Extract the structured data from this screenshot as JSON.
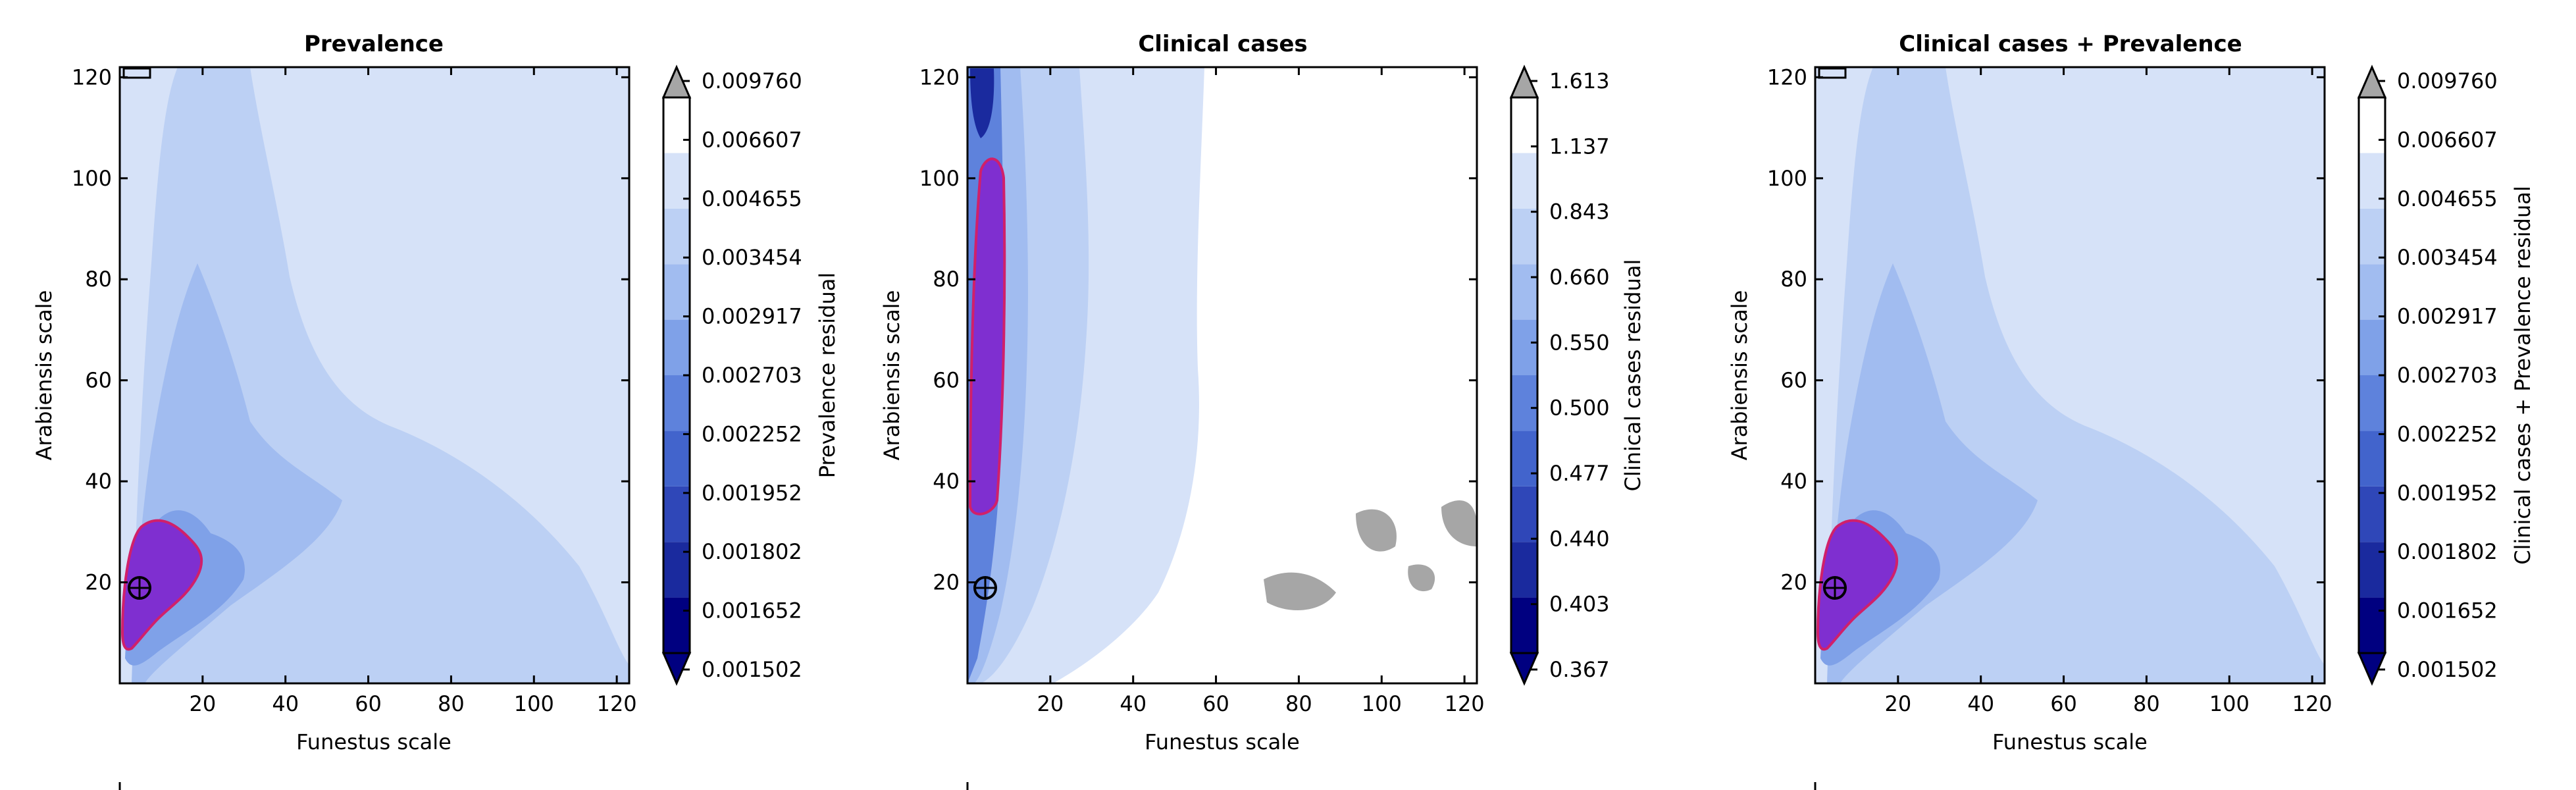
{
  "figure": {
    "background": "#ffffff"
  },
  "chart_data": [
    {
      "type": "heatmap",
      "subtype": "filled-contour",
      "title": "Prevalence",
      "xlabel": "Funestus scale",
      "ylabel": "Arabiensis scale",
      "xlim": [
        0,
        123
      ],
      "ylim": [
        0,
        122
      ],
      "xticks": [
        20,
        40,
        60,
        80,
        100,
        120
      ],
      "yticks": [
        20,
        40,
        60,
        80,
        100,
        120
      ],
      "colorbar": {
        "label": "Prevalence residual",
        "levels": [
          "0.001502",
          "0.001652",
          "0.001802",
          "0.001952",
          "0.002252",
          "0.002703",
          "0.002917",
          "0.003454",
          "0.004655",
          "0.006607",
          "0.009760"
        ],
        "extend": "both",
        "colors": [
          "#000080",
          "#1a2a9e",
          "#2f47b8",
          "#4264cc",
          "#5e82dc",
          "#7fa1e8",
          "#a1bcf0",
          "#bcd0f4",
          "#d6e2f8",
          "#ffffff"
        ],
        "over_color": "#a6a6a6",
        "under_color": "#000080"
      },
      "best_marker": {
        "x": 5,
        "y": 20
      },
      "highlight_color": "#7f2fd0",
      "outline_color": "#d0206a"
    },
    {
      "type": "heatmap",
      "subtype": "filled-contour",
      "title": "Clinical cases",
      "xlabel": "Funestus scale",
      "ylabel": "Arabiensis scale",
      "xlim": [
        0,
        123
      ],
      "ylim": [
        0,
        122
      ],
      "xticks": [
        20,
        40,
        60,
        80,
        100,
        120
      ],
      "yticks": [
        20,
        40,
        60,
        80,
        100,
        120
      ],
      "colorbar": {
        "label": "Clinical cases residual",
        "levels": [
          "0.367",
          "0.403",
          "0.440",
          "0.477",
          "0.500",
          "0.550",
          "0.660",
          "0.843",
          "1.137",
          "1.613"
        ],
        "extend": "both",
        "colors": [
          "#000080",
          "#1a2a9e",
          "#2f47b8",
          "#4264cc",
          "#5e82dc",
          "#7fa1e8",
          "#a1bcf0",
          "#bcd0f4",
          "#d6e2f8",
          "#ffffff"
        ],
        "over_color": "#a6a6a6",
        "under_color": "#000080"
      },
      "best_marker": {
        "x": 4,
        "y": 20
      },
      "highlight_color": "#7f2fd0",
      "outline_color": "#d0206a"
    },
    {
      "type": "heatmap",
      "subtype": "filled-contour",
      "title": "Clinical cases + Prevalence",
      "xlabel": "Funestus scale",
      "ylabel": "Arabiensis scale",
      "xlim": [
        0,
        123
      ],
      "ylim": [
        0,
        122
      ],
      "xticks": [
        20,
        40,
        60,
        80,
        100,
        120
      ],
      "yticks": [
        20,
        40,
        60,
        80,
        100,
        120
      ],
      "colorbar": {
        "label": "Clinical cases + Prevalence residual",
        "levels": [
          "0.001502",
          "0.001652",
          "0.001802",
          "0.001952",
          "0.002252",
          "0.002703",
          "0.002917",
          "0.003454",
          "0.004655",
          "0.006607",
          "0.009760"
        ],
        "extend": "both",
        "colors": [
          "#000080",
          "#1a2a9e",
          "#2f47b8",
          "#4264cc",
          "#5e82dc",
          "#7fa1e8",
          "#a1bcf0",
          "#bcd0f4",
          "#d6e2f8",
          "#ffffff"
        ],
        "over_color": "#a6a6a6",
        "under_color": "#000080"
      },
      "best_marker": {
        "x": 5,
        "y": 20
      },
      "highlight_color": "#7f2fd0",
      "outline_color": "#d0206a"
    }
  ]
}
